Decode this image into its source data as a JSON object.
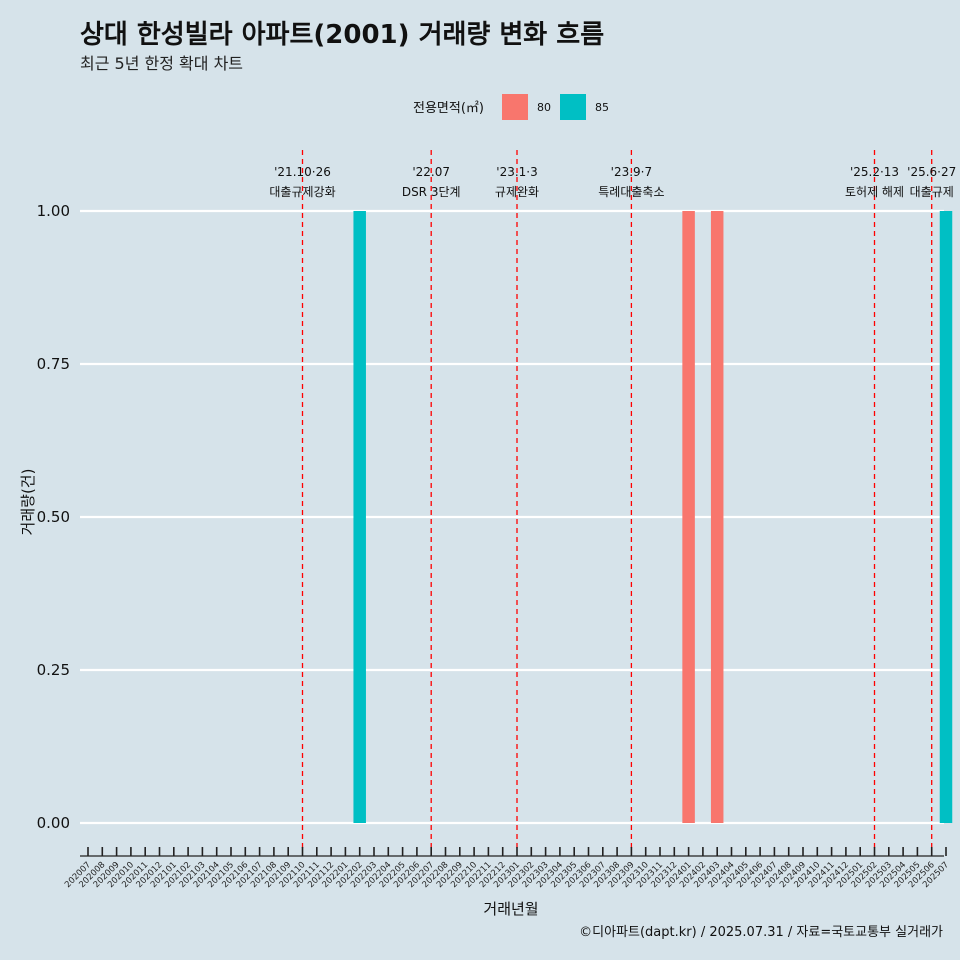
{
  "title": "상대 한성빌라 아파트(2001) 거래량 변화 흐름",
  "subtitle": "최근 5년 한정 확대 차트",
  "caption": "©디아파트(dapt.kr) / 2025.07.31 / 자료=국토교통부 실거래가",
  "colors": {
    "background": "#d6e3ea",
    "series_80": "#f8766d",
    "series_85": "#00bfc4",
    "event_line": "#ff0000",
    "gridline": "#ffffff"
  },
  "legend": {
    "title": "전용면적(㎡)",
    "position": "top",
    "items": [
      {
        "label": "80",
        "color": "#f8766d"
      },
      {
        "label": "85",
        "color": "#00bfc4"
      }
    ]
  },
  "chart_data": {
    "type": "bar",
    "xlabel": "거래년월",
    "ylabel": "거래량(건)",
    "ylim": [
      0,
      1
    ],
    "yticks": [
      "0.00",
      "0.25",
      "0.50",
      "0.75",
      "1.00"
    ],
    "grid": true,
    "categories": [
      "202007",
      "202008",
      "202009",
      "202010",
      "202011",
      "202012",
      "202101",
      "202102",
      "202103",
      "202104",
      "202105",
      "202106",
      "202107",
      "202108",
      "202109",
      "202110",
      "202111",
      "202112",
      "202201",
      "202202",
      "202203",
      "202204",
      "202205",
      "202206",
      "202207",
      "202208",
      "202209",
      "202210",
      "202211",
      "202212",
      "202301",
      "202302",
      "202303",
      "202304",
      "202305",
      "202306",
      "202307",
      "202308",
      "202309",
      "202310",
      "202311",
      "202312",
      "202401",
      "202402",
      "202403",
      "202404",
      "202405",
      "202406",
      "202407",
      "202408",
      "202409",
      "202410",
      "202411",
      "202412",
      "202501",
      "202502",
      "202503",
      "202504",
      "202505",
      "202506",
      "202507"
    ],
    "series": [
      {
        "name": "80",
        "color": "#f8766d",
        "points": [
          {
            "x": "202401",
            "y": 1
          },
          {
            "x": "202403",
            "y": 1
          }
        ]
      },
      {
        "name": "85",
        "color": "#00bfc4",
        "points": [
          {
            "x": "202202",
            "y": 1
          },
          {
            "x": "202507",
            "y": 1
          }
        ]
      }
    ],
    "annotations": [
      {
        "x": "202110",
        "date": "'21.10·26",
        "label": "대출규제강화"
      },
      {
        "x": "202207",
        "date": "'22.07",
        "label": "DSR 3단계"
      },
      {
        "x": "202301",
        "date": "'23.1·3",
        "label": "규제완화"
      },
      {
        "x": "202309",
        "date": "'23.9·7",
        "label": "특례대출축소"
      },
      {
        "x": "202502",
        "date": "'25.2·13",
        "label": "토허제 해제"
      },
      {
        "x": "202506",
        "date": "'25.6·27",
        "label": "대출규제"
      }
    ]
  }
}
